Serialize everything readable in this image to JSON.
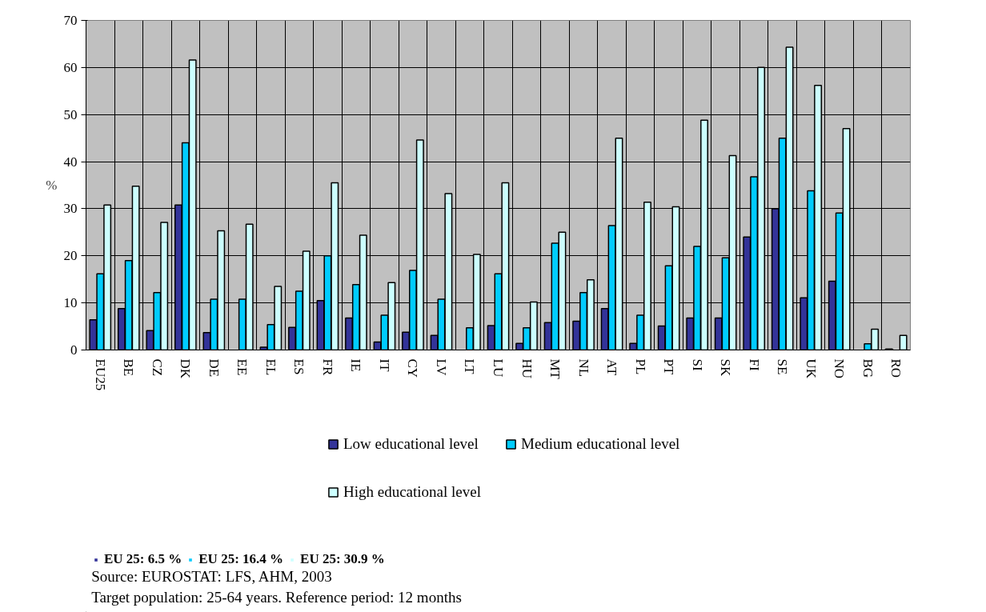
{
  "chart_data": {
    "type": "bar",
    "ylabel": "%",
    "categories": [
      "EU25",
      "BE",
      "CZ",
      "DK",
      "DE",
      "EE",
      "EL",
      "ES",
      "FR",
      "IE",
      "IT",
      "CY",
      "LV",
      "LT",
      "LU",
      "HU",
      "MT",
      "NL",
      "AT",
      "PL",
      "PT",
      "SI",
      "SK",
      "FI",
      "SE",
      "UK",
      "NO",
      "BG",
      "RO"
    ],
    "series": [
      {
        "name": "Low educational level",
        "color": "#333399",
        "values": [
          6.4,
          8.8,
          4.1,
          30.8,
          3.7,
          null,
          0.6,
          4.8,
          10.5,
          6.8,
          1.7,
          3.8,
          3.1,
          null,
          5.2,
          1.4,
          5.8,
          6.1,
          8.8,
          1.4,
          5.1,
          6.8,
          6.8,
          24.0,
          30.0,
          11.1,
          14.6,
          null,
          0.2
        ]
      },
      {
        "name": "Medium educational level",
        "color": "#00ccff",
        "values": [
          16.2,
          19.0,
          12.2,
          44.0,
          10.8,
          10.8,
          5.4,
          12.5,
          20.0,
          13.9,
          7.4,
          16.9,
          10.8,
          4.7,
          16.2,
          4.7,
          22.7,
          12.2,
          26.4,
          7.4,
          17.9,
          22.0,
          19.6,
          36.8,
          45.0,
          33.8,
          29.1,
          1.3,
          null
        ]
      },
      {
        "name": "High educational level",
        "color": "#ccffff",
        "values": [
          30.8,
          34.8,
          27.1,
          61.6,
          25.3,
          26.7,
          13.5,
          21.0,
          35.5,
          24.4,
          14.3,
          44.6,
          33.2,
          20.3,
          35.5,
          10.2,
          25.0,
          14.9,
          45.0,
          31.4,
          30.4,
          48.8,
          41.3,
          60.0,
          64.3,
          56.2,
          47.0,
          4.4,
          3.1
        ]
      }
    ],
    "ylim": [
      0,
      70
    ],
    "yticks": [
      0,
      10,
      20,
      30,
      40,
      50,
      60,
      70
    ],
    "grid": true,
    "legend": "bottom",
    "annotations": [
      "EU 25: 6.5 %",
      "EU 25: 16.4 %",
      "EU 25: 30.9 %",
      "Source: EUROSTAT: LFS, AHM, 2003",
      "Target population: 25-64 years. Reference period: 12 months"
    ]
  }
}
